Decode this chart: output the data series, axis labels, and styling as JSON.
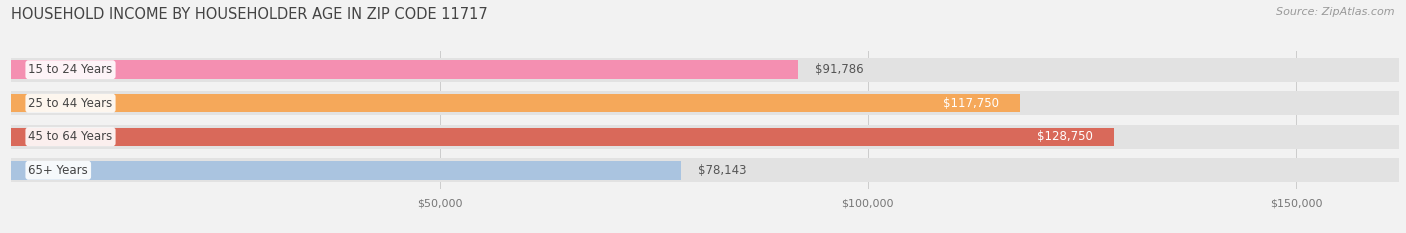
{
  "title": "HOUSEHOLD INCOME BY HOUSEHOLDER AGE IN ZIP CODE 11717",
  "source": "Source: ZipAtlas.com",
  "categories": [
    "15 to 24 Years",
    "25 to 44 Years",
    "45 to 64 Years",
    "65+ Years"
  ],
  "values": [
    91786,
    117750,
    128750,
    78143
  ],
  "bar_colors": [
    "#f48fb1",
    "#f5a85a",
    "#d9695a",
    "#aac4e0"
  ],
  "label_colors": [
    "#555555",
    "#ffffff",
    "#ffffff",
    "#555555"
  ],
  "label_inside": [
    false,
    true,
    true,
    false
  ],
  "xlim": [
    0,
    162000
  ],
  "xticks": [
    50000,
    100000,
    150000
  ],
  "xtick_labels": [
    "$50,000",
    "$100,000",
    "$150,000"
  ],
  "background_color": "#f2f2f2",
  "bar_bg_color": "#e2e2e2",
  "title_fontsize": 10.5,
  "source_fontsize": 8,
  "label_fontsize": 8.5,
  "category_fontsize": 8.5
}
